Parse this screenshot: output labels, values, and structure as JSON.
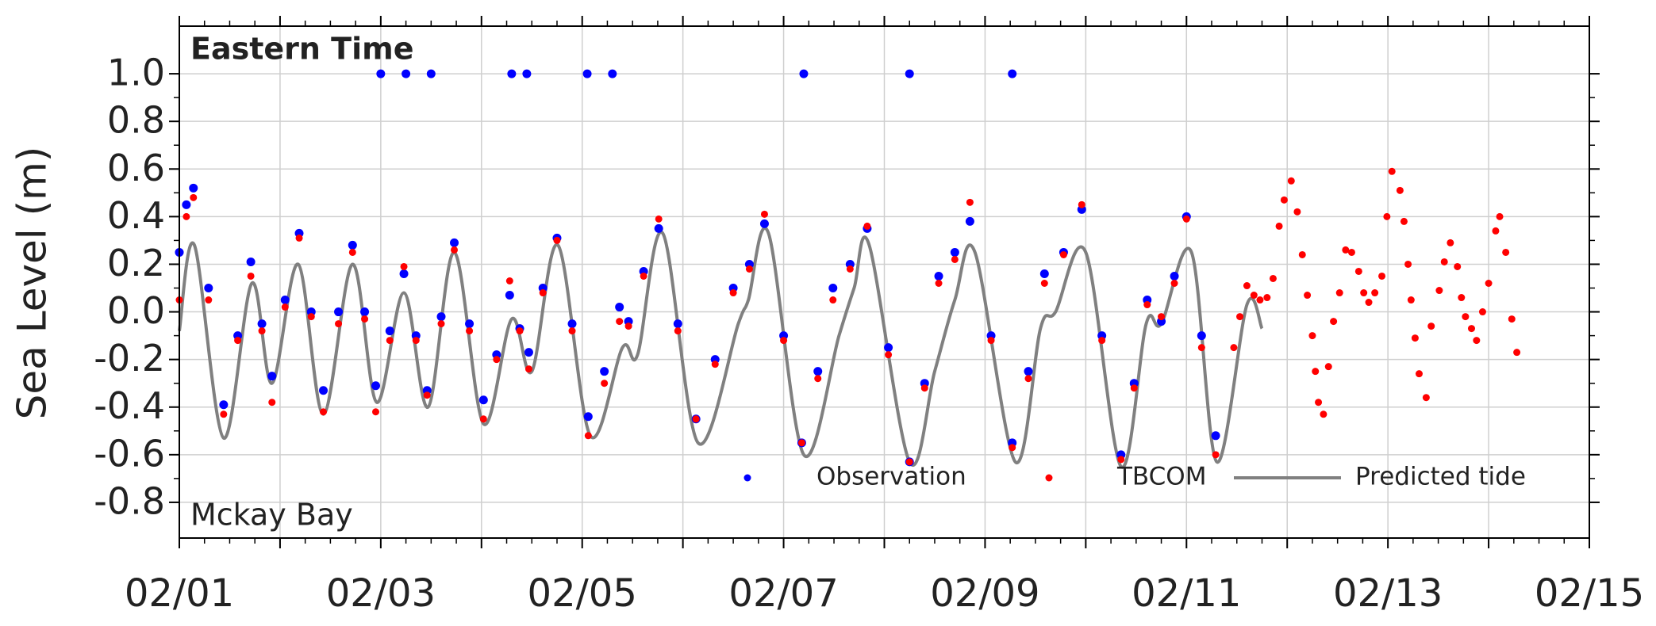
{
  "chart_data": {
    "type": "scatter",
    "annotations": [
      "Eastern Time",
      "Mckay Bay"
    ],
    "y_label": "Sea Level (m)",
    "xlim": [
      0,
      14
    ],
    "ylim": [
      -0.95,
      1.2
    ],
    "xticks": [
      {
        "value": 0,
        "label": "02/01"
      },
      {
        "value": 1,
        "label": null
      },
      {
        "value": 2,
        "label": "02/03"
      },
      {
        "value": 3,
        "label": null
      },
      {
        "value": 4,
        "label": "02/05"
      },
      {
        "value": 5,
        "label": null
      },
      {
        "value": 6,
        "label": "02/07"
      },
      {
        "value": 7,
        "label": null
      },
      {
        "value": 8,
        "label": "02/09"
      },
      {
        "value": 9,
        "label": null
      },
      {
        "value": 10,
        "label": "02/11"
      },
      {
        "value": 11,
        "label": null
      },
      {
        "value": 12,
        "label": "02/13"
      },
      {
        "value": 13,
        "label": null
      },
      {
        "value": 14,
        "label": "02/15"
      }
    ],
    "yticks": [
      -0.8,
      -0.6,
      -0.4,
      -0.2,
      {
        "value": 0,
        "label": "0.0"
      },
      0.2,
      0.4,
      0.6,
      0.8,
      {
        "value": 1,
        "label": "1.0"
      }
    ],
    "grid": true,
    "legend": "lower right",
    "series": [
      {
        "name": "Observation",
        "color": "#0000ff",
        "mode": "markers",
        "x": [
          0,
          0.07,
          0.14,
          0.29,
          0.44,
          0.58,
          0.71,
          0.82,
          0.92,
          1.05,
          1.19,
          1.31,
          1.43,
          1.58,
          1.72,
          1.84,
          1.95,
          2.09,
          2.23,
          2.35,
          2.46,
          2.6,
          2.73,
          2.88,
          3.02,
          3.15,
          3.28,
          3.38,
          3.47,
          3.61,
          3.75,
          3.9,
          4.06,
          4.22,
          4.37,
          4.46,
          4.61,
          4.76,
          4.95,
          5.13,
          5.32,
          5.5,
          5.66,
          5.81,
          6.0,
          6.18,
          6.34,
          6.49,
          6.66,
          6.83,
          7.04,
          7.25,
          7.4,
          7.54,
          7.7,
          7.85,
          8.06,
          8.27,
          8.43,
          8.59,
          8.78,
          8.96,
          9.16,
          9.35,
          9.48,
          9.61,
          9.75,
          9.88,
          10.0,
          10.15,
          10.29,
          2.0,
          2.25,
          2.5,
          3.3,
          3.45,
          4.05,
          4.3,
          6.2,
          7.25,
          8.27
        ],
        "values": [
          0.25,
          0.45,
          0.52,
          0.1,
          -0.39,
          -0.1,
          0.21,
          -0.05,
          -0.27,
          0.05,
          0.33,
          0.0,
          -0.33,
          0.0,
          0.28,
          0.0,
          -0.31,
          -0.08,
          0.16,
          -0.1,
          -0.33,
          -0.02,
          0.29,
          -0.05,
          -0.37,
          -0.18,
          0.07,
          -0.07,
          -0.17,
          0.1,
          0.31,
          -0.05,
          -0.44,
          -0.25,
          0.02,
          -0.04,
          0.17,
          0.35,
          -0.05,
          -0.45,
          -0.2,
          0.1,
          0.2,
          0.37,
          -0.1,
          -0.55,
          -0.25,
          0.1,
          0.2,
          0.35,
          -0.15,
          -0.63,
          -0.3,
          0.15,
          0.25,
          0.38,
          -0.1,
          -0.55,
          -0.25,
          0.16,
          0.25,
          0.43,
          -0.1,
          -0.6,
          -0.3,
          0.05,
          -0.04,
          0.15,
          0.4,
          -0.1,
          -0.52,
          1.0,
          1.0,
          1.0,
          1.0,
          1.0,
          1.0,
          1.0,
          1.0,
          1.0,
          1.0
        ]
      },
      {
        "name": "TBCOM",
        "color": "#ff0000",
        "mode": "markers",
        "x": [
          0,
          0.07,
          0.14,
          0.29,
          0.44,
          0.58,
          0.71,
          0.82,
          0.92,
          1.05,
          1.19,
          1.31,
          1.43,
          1.58,
          1.72,
          1.84,
          1.95,
          2.09,
          2.23,
          2.35,
          2.46,
          2.6,
          2.73,
          2.88,
          3.02,
          3.15,
          3.28,
          3.38,
          3.47,
          3.61,
          3.75,
          3.9,
          4.06,
          4.22,
          4.37,
          4.46,
          4.61,
          4.76,
          4.95,
          5.13,
          5.32,
          5.5,
          5.66,
          5.81,
          6.0,
          6.18,
          6.34,
          6.49,
          6.66,
          6.83,
          7.04,
          7.25,
          7.4,
          7.54,
          7.7,
          7.85,
          8.06,
          8.27,
          8.43,
          8.59,
          8.78,
          8.96,
          9.16,
          9.35,
          9.48,
          9.61,
          9.75,
          9.88,
          10.0,
          10.15,
          10.29,
          10.47,
          10.53,
          10.6,
          10.67,
          10.73,
          10.8,
          10.86,
          10.92,
          10.97,
          11.04,
          11.1,
          11.15,
          11.2,
          11.25,
          11.28,
          11.31,
          11.36,
          11.41,
          11.46,
          11.52,
          11.58,
          11.64,
          11.71,
          11.76,
          11.81,
          11.87,
          11.94,
          11.99,
          12.04,
          12.12,
          12.16,
          12.2,
          12.23,
          12.27,
          12.31,
          12.38,
          12.43,
          12.51,
          12.56,
          12.62,
          12.69,
          12.73,
          12.77,
          12.83,
          12.88,
          12.94,
          13.0,
          13.07,
          13.11,
          13.17,
          13.23,
          13.28
        ],
        "values": [
          0.05,
          0.4,
          0.48,
          0.05,
          -0.43,
          -0.12,
          0.15,
          -0.08,
          -0.38,
          0.02,
          0.31,
          -0.02,
          -0.42,
          -0.05,
          0.25,
          -0.03,
          -0.42,
          -0.12,
          0.19,
          -0.12,
          -0.35,
          -0.05,
          0.26,
          -0.08,
          -0.45,
          -0.2,
          0.13,
          -0.08,
          -0.24,
          0.08,
          0.3,
          -0.08,
          -0.52,
          -0.3,
          -0.04,
          -0.06,
          0.15,
          0.39,
          -0.08,
          -0.45,
          -0.22,
          0.08,
          0.18,
          0.41,
          -0.12,
          -0.55,
          -0.28,
          0.05,
          0.18,
          0.36,
          -0.18,
          -0.63,
          -0.32,
          0.12,
          0.22,
          0.46,
          -0.12,
          -0.57,
          -0.28,
          0.12,
          0.24,
          0.45,
          -0.12,
          -0.62,
          -0.32,
          0.03,
          -0.02,
          0.12,
          0.39,
          -0.15,
          -0.6,
          -0.15,
          -0.02,
          0.11,
          0.07,
          0.05,
          0.06,
          0.14,
          0.36,
          0.47,
          0.55,
          0.42,
          0.24,
          0.07,
          -0.1,
          -0.25,
          -0.38,
          -0.43,
          -0.23,
          -0.04,
          0.08,
          0.26,
          0.25,
          0.17,
          0.08,
          0.04,
          0.08,
          0.15,
          0.4,
          0.59,
          0.51,
          0.38,
          0.2,
          0.05,
          -0.11,
          -0.26,
          -0.36,
          -0.06,
          0.09,
          0.21,
          0.29,
          0.19,
          0.06,
          -0.02,
          -0.07,
          -0.12,
          0.0,
          0.12,
          0.34,
          0.4,
          0.25,
          -0.03,
          -0.17
        ]
      },
      {
        "name": "Predicted tide",
        "color": "#808080",
        "mode": "line",
        "x": [
          0,
          0.15,
          0.44,
          0.72,
          0.92,
          1.18,
          1.43,
          1.72,
          1.96,
          2.23,
          2.47,
          2.73,
          3.02,
          3.3,
          3.5,
          3.76,
          4.08,
          4.4,
          4.55,
          4.8,
          5.15,
          5.55,
          5.65,
          5.85,
          6.2,
          6.55,
          6.7,
          6.85,
          7.25,
          7.5,
          7.7,
          7.9,
          8.3,
          8.55,
          8.7,
          9.0,
          9.35,
          9.6,
          9.75,
          10.05,
          10.3,
          10.6,
          10.75
        ],
        "values": [
          -0.08,
          0.28,
          -0.53,
          0.12,
          -0.3,
          0.2,
          -0.43,
          0.2,
          -0.38,
          0.08,
          -0.4,
          0.25,
          -0.47,
          -0.03,
          -0.25,
          0.28,
          -0.52,
          -0.15,
          -0.18,
          0.33,
          -0.55,
          -0.05,
          0.05,
          0.33,
          -0.6,
          -0.1,
          0.1,
          0.28,
          -0.63,
          -0.25,
          0.05,
          0.25,
          -0.63,
          -0.07,
          0.0,
          0.25,
          -0.65,
          -0.05,
          -0.05,
          0.25,
          -0.63,
          0.03,
          -0.07
        ]
      }
    ]
  }
}
